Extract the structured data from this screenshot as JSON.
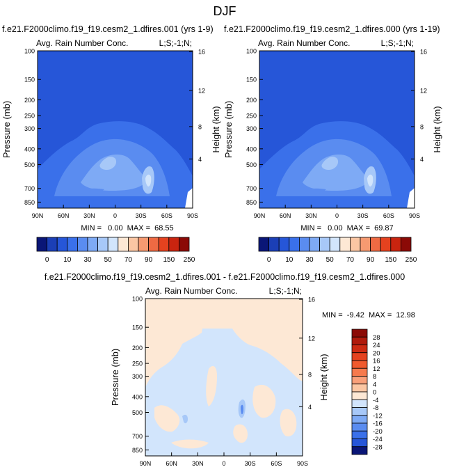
{
  "figure": {
    "title": "DJF"
  },
  "chart_data": [
    {
      "type": "heatmap",
      "id": "left",
      "title": "f.e21.F2000climo.f19_f19.cesm2_1.dfires.001 (yrs 1-9)",
      "inner_title_left": "Avg. Rain Number Conc.",
      "inner_title_right": "L;S;-1;N;",
      "ylabel": "Pressure (mb)",
      "ylabel_right": "Height (km)",
      "x_ticks": [
        "90N",
        "60N",
        "30N",
        "0",
        "30S",
        "60S",
        "90S"
      ],
      "y_ticks": [
        "100",
        "150",
        "200",
        "250",
        "300",
        "400",
        "500",
        "700",
        "850"
      ],
      "y_ticks_right": [
        "16",
        "12",
        "8",
        "4"
      ],
      "stats": "MIN =   0.00  MAX =  68.55",
      "colorbar_labels": [
        "0",
        "10",
        "30",
        "50",
        "70",
        "90",
        "150",
        "250"
      ],
      "colorbar_colors": [
        "#0a1677",
        "#1b3fb6",
        "#2656d8",
        "#3a70ea",
        "#5a8cf0",
        "#7eaaf5",
        "#a7c8f8",
        "#d2e5fc",
        "#fde8d5",
        "#fbc6a3",
        "#f69a71",
        "#ef6a43",
        "#e5421f",
        "#c9240f",
        "#8b0a06"
      ],
      "min": 0.0,
      "max": 68.55
    },
    {
      "type": "heatmap",
      "id": "right",
      "title": "f.e21.F2000climo.f19_f19.cesm2_1.dfires.000 (yrs 1-19)",
      "inner_title_left": "Avg. Rain Number Conc.",
      "inner_title_right": "L;S;-1;N;",
      "ylabel": "Pressure (mb)",
      "ylabel_right": "Height (km)",
      "x_ticks": [
        "90N",
        "60N",
        "30N",
        "0",
        "30S",
        "60S",
        "90S"
      ],
      "y_ticks": [
        "100",
        "150",
        "200",
        "250",
        "300",
        "400",
        "500",
        "700",
        "850"
      ],
      "y_ticks_right": [
        "16",
        "12",
        "8",
        "4"
      ],
      "stats": "MIN =   0.00  MAX =  69.87",
      "colorbar_labels": [
        "0",
        "10",
        "30",
        "50",
        "70",
        "90",
        "150",
        "250"
      ],
      "colorbar_colors": [
        "#0a1677",
        "#1b3fb6",
        "#2656d8",
        "#3a70ea",
        "#5a8cf0",
        "#7eaaf5",
        "#a7c8f8",
        "#d2e5fc",
        "#fde8d5",
        "#fbc6a3",
        "#f69a71",
        "#ef6a43",
        "#e5421f",
        "#c9240f",
        "#8b0a06"
      ],
      "min": 0.0,
      "max": 69.87
    },
    {
      "type": "heatmap",
      "id": "diff",
      "title": "f.e21.F2000climo.f19_f19.cesm2_1.dfires.001 - f.e21.F2000climo.f19_f19.cesm2_1.dfires.000",
      "inner_title_left": "Avg. Rain Number Conc.",
      "inner_title_right": "L;S;-1;N;",
      "ylabel": "Pressure (mb)",
      "ylabel_right": "Height (km)",
      "x_ticks": [
        "90N",
        "60N",
        "30N",
        "0",
        "30S",
        "60S",
        "90S"
      ],
      "y_ticks": [
        "100",
        "150",
        "200",
        "250",
        "300",
        "400",
        "500",
        "700",
        "850"
      ],
      "y_ticks_right": [
        "16",
        "12",
        "8",
        "4"
      ],
      "stats": "MIN =  -9.42  MAX =  12.98",
      "colorbar_labels": [
        "28",
        "24",
        "20",
        "16",
        "12",
        "8",
        "4",
        "0",
        "-4",
        "-8",
        "-12",
        "-16",
        "-20",
        "-24",
        "-28"
      ],
      "colorbar_colors": [
        "#8b0a06",
        "#b01a0c",
        "#cd2a12",
        "#e5421f",
        "#f05a2e",
        "#f67a4d",
        "#f9a07a",
        "#fbc6a3",
        "#fde8d5",
        "#d2e5fc",
        "#a7c8f8",
        "#7eaaf5",
        "#5a8cf0",
        "#3a70ea",
        "#2656d8",
        "#0a1677"
      ],
      "min": -9.42,
      "max": 12.98
    }
  ]
}
